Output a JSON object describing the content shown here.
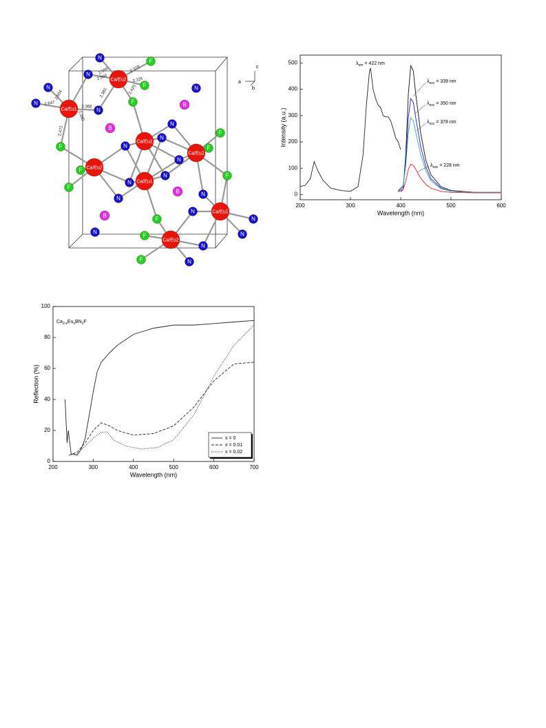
{
  "figure": {
    "atoms": [
      {
        "label": "Ca/Eu2",
        "color": "#e8150c"
      },
      {
        "label": "Ca/Eu1",
        "color": "#e8150c"
      },
      {
        "label": "Ca/Eu1",
        "color": "#e8150c"
      },
      {
        "label": "Ca/Eu2",
        "color": "#e8150c"
      },
      {
        "label": "Ca/Eu2",
        "color": "#e8150c"
      },
      {
        "label": "Ca/Eu1",
        "color": "#e8150c"
      },
      {
        "label": "Ca/Eu1",
        "color": "#e8150c"
      },
      {
        "label": "Ca/Eu2",
        "color": "#e8150c"
      },
      {
        "label": "N",
        "color": "#1010c8"
      },
      {
        "label": "N",
        "color": "#1010c8"
      },
      {
        "label": "N",
        "color": "#1010c8"
      },
      {
        "label": "N",
        "color": "#1010c8"
      },
      {
        "label": "N",
        "color": "#1010c8"
      },
      {
        "label": "N",
        "color": "#1010c8"
      },
      {
        "label": "N",
        "color": "#1010c8"
      },
      {
        "label": "N",
        "color": "#1010c8"
      },
      {
        "label": "N",
        "color": "#1010c8"
      },
      {
        "label": "N",
        "color": "#1010c8"
      },
      {
        "label": "N",
        "color": "#1010c8"
      },
      {
        "label": "N",
        "color": "#1010c8"
      },
      {
        "label": "N",
        "color": "#1010c8"
      },
      {
        "label": "N",
        "color": "#1010c8"
      },
      {
        "label": "N",
        "color": "#1010c8"
      },
      {
        "label": "N",
        "color": "#1010c8"
      },
      {
        "label": "N",
        "color": "#1010c8"
      },
      {
        "label": "N",
        "color": "#1010c8"
      },
      {
        "label": "N",
        "color": "#1010c8"
      },
      {
        "label": "N",
        "color": "#1010c8"
      },
      {
        "label": "F",
        "color": "#22d022"
      },
      {
        "label": "F",
        "color": "#22d022"
      },
      {
        "label": "F",
        "color": "#22d022"
      },
      {
        "label": "F",
        "color": "#22d022"
      },
      {
        "label": "F",
        "color": "#22d022"
      },
      {
        "label": "F",
        "color": "#22d022"
      },
      {
        "label": "F",
        "color": "#22d022"
      },
      {
        "label": "F",
        "color": "#22d022"
      },
      {
        "label": "F",
        "color": "#22d022"
      },
      {
        "label": "F",
        "color": "#22d022"
      },
      {
        "label": "F",
        "color": "#22d022"
      },
      {
        "label": "F",
        "color": "#22d022"
      },
      {
        "label": "B",
        "color": "#e030e0"
      },
      {
        "label": "B",
        "color": "#e030e0"
      },
      {
        "label": "B",
        "color": "#e030e0"
      },
      {
        "label": "B",
        "color": "#e030e0"
      }
    ],
    "bond_labels": [
      "2.599",
      "2.379",
      "2.560",
      "2.325",
      "2.385",
      "2.425",
      "2.647",
      "2.368",
      "2.390",
      "2.472",
      "2.604"
    ],
    "axes": [
      "c",
      "a",
      "b"
    ]
  },
  "chart_data": [
    {
      "type": "line",
      "xlabel": "Wavelength (nm)",
      "ylabel": "Intensity (a.u.)",
      "xlim": [
        200,
        600
      ],
      "ylim": [
        -20,
        530
      ],
      "xticks": [
        200,
        300,
        400,
        500,
        600
      ],
      "yticks": [
        0,
        100,
        200,
        300,
        400,
        500
      ],
      "series": [
        {
          "color": "#222222",
          "x": [
            200,
            210,
            220,
            228,
            235,
            245,
            260,
            280,
            300,
            315,
            325,
            332,
            338,
            340,
            345,
            350,
            355,
            360,
            365,
            370,
            375,
            380,
            385,
            390,
            395,
            400
          ],
          "values": [
            30,
            35,
            60,
            125,
            90,
            55,
            25,
            15,
            12,
            30,
            150,
            350,
            470,
            480,
            400,
            365,
            340,
            330,
            300,
            295,
            295,
            280,
            250,
            215,
            200,
            170
          ]
        },
        {
          "color": "#111111",
          "x": [
            400,
            405,
            410,
            415,
            420,
            425,
            430,
            440,
            450,
            460,
            480,
            500,
            550,
            600
          ],
          "values": [
            10,
            20,
            150,
            380,
            490,
            470,
            380,
            230,
            130,
            75,
            30,
            15,
            8,
            8
          ]
        },
        {
          "color": "#2020d0",
          "x": [
            395,
            405,
            410,
            415,
            420,
            425,
            430,
            440,
            450,
            460,
            480,
            500,
            550,
            600
          ],
          "values": [
            12,
            30,
            120,
            290,
            365,
            350,
            290,
            180,
            105,
            60,
            25,
            12,
            8,
            8
          ]
        },
        {
          "color": "#3aa0b8",
          "x": [
            395,
            405,
            410,
            415,
            420,
            425,
            430,
            440,
            450,
            460,
            480,
            500,
            550,
            600
          ],
          "values": [
            15,
            35,
            110,
            235,
            290,
            280,
            235,
            150,
            90,
            52,
            22,
            12,
            8,
            8
          ]
        },
        {
          "color": "#e02020",
          "x": [
            395,
            405,
            410,
            415,
            420,
            425,
            430,
            440,
            450,
            460,
            480,
            500,
            550,
            600
          ],
          "values": [
            10,
            20,
            50,
            95,
            115,
            110,
            95,
            62,
            38,
            24,
            12,
            8,
            6,
            6
          ]
        }
      ],
      "annotations": [
        {
          "parts": [
            {
              "text": "λ"
            },
            {
              "text": "em",
              "sub": true
            },
            {
              "text": " = 422 nm"
            }
          ]
        },
        {
          "parts": [
            {
              "text": "λ"
            },
            {
              "text": "exc",
              "sub": true
            },
            {
              "text": " = 339 nm"
            }
          ]
        },
        {
          "parts": [
            {
              "text": "λ"
            },
            {
              "text": "exc",
              "sub": true
            },
            {
              "text": " = 350 nm"
            }
          ]
        },
        {
          "parts": [
            {
              "text": "λ"
            },
            {
              "text": "exc",
              "sub": true
            },
            {
              "text": " = 378 nm"
            }
          ]
        },
        {
          "parts": [
            {
              "text": "λ"
            },
            {
              "text": "exc",
              "sub": true
            },
            {
              "text": " = 228 nm"
            }
          ]
        }
      ]
    },
    {
      "type": "line",
      "xlabel": "Wavelength (nm)",
      "ylabel": "Reflection (%)",
      "xlim": [
        200,
        700
      ],
      "ylim": [
        0,
        100
      ],
      "xticks": [
        200,
        300,
        400,
        500,
        600,
        700
      ],
      "yticks": [
        0,
        20,
        40,
        60,
        80,
        100
      ],
      "legend": "lower right",
      "series": [
        {
          "name": "x = 0",
          "color": "#222222",
          "dash": "solid",
          "x": [
            230,
            235,
            238,
            245,
            260,
            270,
            280,
            290,
            300,
            310,
            320,
            340,
            360,
            400,
            450,
            500,
            550,
            600,
            650,
            700
          ],
          "values": [
            40,
            12,
            20,
            5,
            4,
            8,
            15,
            30,
            45,
            58,
            64,
            70,
            75,
            82,
            86,
            88,
            88,
            89,
            90,
            91
          ]
        },
        {
          "name": "x = 0.01",
          "color": "#222222",
          "dash": "dashed",
          "x": [
            240,
            260,
            280,
            300,
            320,
            340,
            360,
            400,
            450,
            500,
            550,
            600,
            650,
            700
          ],
          "values": [
            4,
            6,
            12,
            20,
            25,
            23,
            20,
            17,
            18,
            23,
            35,
            52,
            63,
            64
          ]
        },
        {
          "name": "x = 0.02",
          "color": "#222222",
          "dash": "dotted",
          "x": [
            240,
            260,
            280,
            300,
            320,
            335,
            350,
            380,
            420,
            460,
            500,
            550,
            600,
            650,
            700
          ],
          "values": [
            4,
            5,
            10,
            15,
            19,
            19,
            14,
            10,
            8,
            9,
            14,
            30,
            55,
            75,
            88
          ]
        }
      ],
      "annotations": [
        {
          "parts": [
            {
              "text": "Ca"
            },
            {
              "text": "2-x",
              "sub": true
            },
            {
              "text": "Eu"
            },
            {
              "text": "x",
              "sub": true
            },
            {
              "text": "BN"
            },
            {
              "text": "2",
              "sub": true
            },
            {
              "text": "F"
            }
          ]
        }
      ]
    }
  ]
}
